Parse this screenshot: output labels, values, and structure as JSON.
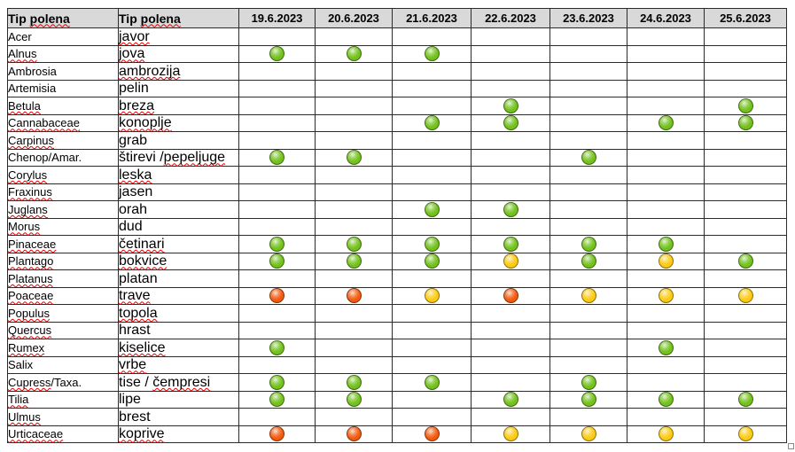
{
  "table": {
    "headers": {
      "latin": "Tip polena",
      "local": "Tip polena",
      "dates": [
        "19.6.2023",
        "20.6.2023",
        "21.6.2023",
        "22.6.2023",
        "23.6.2023",
        "24.6.2023",
        "25.6.2023"
      ]
    },
    "rows": [
      {
        "latin": "Acer",
        "local": "javor",
        "levels": [
          null,
          null,
          null,
          null,
          null,
          null,
          null
        ]
      },
      {
        "latin": "Alnus",
        "local": "jova",
        "levels": [
          "green",
          "green",
          "green",
          null,
          null,
          null,
          null
        ]
      },
      {
        "latin": "Ambrosia",
        "local": "ambrozija",
        "levels": [
          null,
          null,
          null,
          null,
          null,
          null,
          null
        ]
      },
      {
        "latin": "Artemisia",
        "local": "pelin",
        "levels": [
          null,
          null,
          null,
          null,
          null,
          null,
          null
        ]
      },
      {
        "latin": "Betula",
        "local": "breza",
        "levels": [
          null,
          null,
          null,
          "green",
          null,
          null,
          "green"
        ]
      },
      {
        "latin": "Cannabaceae",
        "local": "konoplje",
        "levels": [
          null,
          null,
          "green",
          "green",
          null,
          "green",
          "green"
        ]
      },
      {
        "latin": "Carpinus",
        "local": "grab",
        "levels": [
          null,
          null,
          null,
          null,
          null,
          null,
          null
        ]
      },
      {
        "latin": "Chenop/Amar.",
        "local": "štirevi /pepeljuge",
        "levels": [
          "green",
          "green",
          null,
          null,
          "green",
          null,
          null
        ]
      },
      {
        "latin": "Corylus",
        "local": "leska",
        "levels": [
          null,
          null,
          null,
          null,
          null,
          null,
          null
        ]
      },
      {
        "latin": "Fraxinus",
        "local": "jasen",
        "levels": [
          null,
          null,
          null,
          null,
          null,
          null,
          null
        ]
      },
      {
        "latin": "Juglans",
        "local": "orah",
        "levels": [
          null,
          null,
          "green",
          "green",
          null,
          null,
          null
        ]
      },
      {
        "latin": "Morus",
        "local": "dud",
        "levels": [
          null,
          null,
          null,
          null,
          null,
          null,
          null
        ]
      },
      {
        "latin": "Pinaceae",
        "local": "četinari",
        "levels": [
          "green",
          "green",
          "green",
          "green",
          "green",
          "green",
          null
        ]
      },
      {
        "latin": "Plantago",
        "local": "bokvice",
        "levels": [
          "green",
          "green",
          "green",
          "yellow",
          "green",
          "yellow",
          "green"
        ]
      },
      {
        "latin": "Platanus",
        "local": "platan",
        "levels": [
          null,
          null,
          null,
          null,
          null,
          null,
          null
        ]
      },
      {
        "latin": "Poaceae",
        "local": "trave",
        "levels": [
          "orange",
          "orange",
          "yellow",
          "orange",
          "yellow",
          "yellow",
          "yellow"
        ]
      },
      {
        "latin": "Populus",
        "local": "topola",
        "levels": [
          null,
          null,
          null,
          null,
          null,
          null,
          null
        ]
      },
      {
        "latin": "Quercus",
        "local": "hrast",
        "levels": [
          null,
          null,
          null,
          null,
          null,
          null,
          null
        ]
      },
      {
        "latin": "Rumex",
        "local": "kiselice",
        "levels": [
          "green",
          null,
          null,
          null,
          null,
          "green",
          null
        ]
      },
      {
        "latin": "Salix",
        "local": "vrbe",
        "levels": [
          null,
          null,
          null,
          null,
          null,
          null,
          null
        ]
      },
      {
        "latin": "Cupress/Taxa.",
        "local": "tise / čempresi",
        "levels": [
          "green",
          "green",
          "green",
          null,
          "green",
          null,
          null
        ]
      },
      {
        "latin": "Tilia",
        "local": "lipe",
        "levels": [
          "green",
          "green",
          null,
          "green",
          "green",
          "green",
          "green"
        ]
      },
      {
        "latin": "Ulmus",
        "local": "brest",
        "levels": [
          null,
          null,
          null,
          null,
          null,
          null,
          null
        ]
      },
      {
        "latin": "Urticaceae",
        "local": "koprive",
        "levels": [
          "orange",
          "orange",
          "orange",
          "yellow",
          "yellow",
          "yellow",
          "yellow"
        ]
      }
    ]
  },
  "colors": {
    "header_bg": "#d9d9d9",
    "border": "#2b2b2b",
    "green": "#72c11c",
    "yellow": "#fdca12",
    "orange": "#f35a0e",
    "spellcheck": "#e60000"
  }
}
